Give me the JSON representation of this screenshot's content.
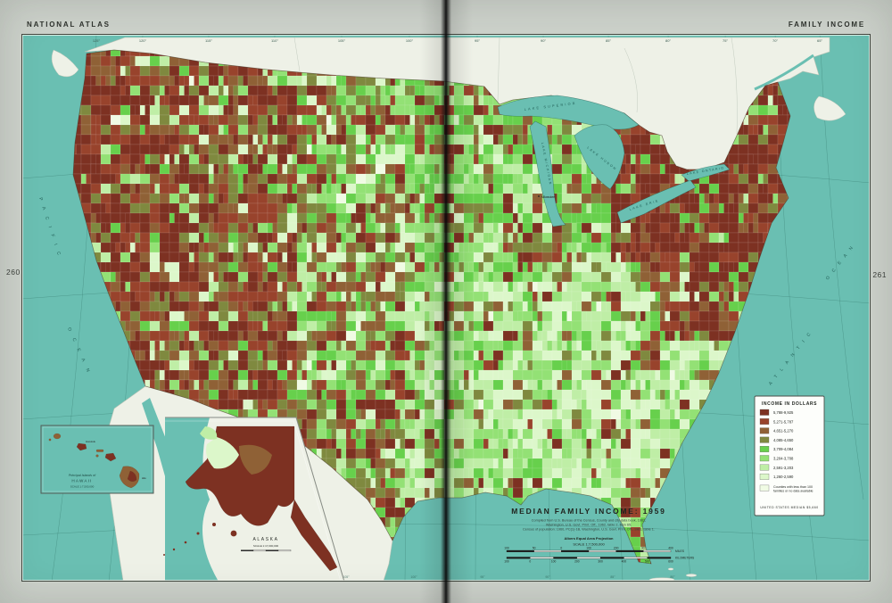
{
  "page": {
    "header_left": "NATIONAL ATLAS",
    "header_right": "FAMILY INCOME",
    "page_number_left": "260",
    "page_number_right": "261"
  },
  "map": {
    "title": "MEDIAN FAMILY INCOME: 1959",
    "attribution_lines": [
      "Compiled from U.S. Bureau of the Census, County and city data book, 1962,",
      "Washington, U.S. Govt. Print. Off., 1962, table 2, item 65;",
      "Census of population: 1960, PC(1)-1B, Washington, U.S. Govt. Print. Off., 1961, table 1."
    ],
    "projection": "Albers Equal Area Projection",
    "scale": "SCALE 1:7,500,000",
    "scale_bar": {
      "miles_ticks": [
        "100",
        "50",
        "0",
        "100",
        "200",
        "300",
        "400"
      ],
      "km_ticks": [
        "100",
        "0",
        "100",
        "200",
        "300",
        "400",
        "500",
        "600"
      ],
      "miles_label": "MILES",
      "km_label": "KILOMETERS"
    },
    "graticule_top_labels": [
      "125°",
      "120°",
      "115°",
      "110°",
      "105°",
      "100°",
      "95°",
      "90°",
      "85°",
      "80°",
      "75°",
      "70°",
      "65°"
    ],
    "graticule_bottom_labels": [
      "105°",
      "100°",
      "95°",
      "90°",
      "85°",
      "80°"
    ],
    "labels": {
      "pacific_1": "PACIFIC",
      "pacific_2": "OCEAN",
      "atlantic_1": "ATLANTIC",
      "atlantic_2": "OCEAN",
      "lake_superior": "LAKE SUPERIOR",
      "lake_michigan": "LAKE MICHIGAN",
      "lake_huron": "LAKE HURON",
      "lake_erie": "LAKE ERIE",
      "lake_ontario": "LAKE ONTARIO",
      "milwaukee": "Milwaukee"
    }
  },
  "legend": {
    "title": "INCOME IN DOLLARS",
    "classes": [
      {
        "label": "5,788-9,925",
        "color": "#7d3122"
      },
      {
        "label": "5,271-5,787",
        "color": "#98432c"
      },
      {
        "label": "4,651-5,270",
        "color": "#8f6136"
      },
      {
        "label": "4,085-4,650",
        "color": "#7f893f"
      },
      {
        "label": "3,709-4,084",
        "color": "#67d04c"
      },
      {
        "label": "3,204-3,708",
        "color": "#93e175"
      },
      {
        "label": "2,591-3,203",
        "color": "#bfeea6"
      },
      {
        "label": "1,260-2,590",
        "color": "#dcf7ca"
      },
      {
        "label": "Counties with less than 100 families or no data available",
        "color": "#f0fbe4"
      }
    ],
    "no_data_lines": [
      "Counties with less than 100",
      "families or no data available"
    ],
    "footnote": "UNITED STATES MEDIAN $5,660"
  },
  "insets": {
    "hawaii": {
      "title_line1": "Principal Islands of",
      "title_line2": "HAWAII",
      "scale": "SCALE 1:7,500,000",
      "honolulu": "Honolulu",
      "hilo": "Hilo"
    },
    "alaska": {
      "label": "ALASKA",
      "scale": "SCALE 1:17,000,000"
    }
  },
  "colors": {
    "ocean": "#6abfb2",
    "foreign_land": "#eef1e7",
    "page": "#cdd2cb"
  }
}
